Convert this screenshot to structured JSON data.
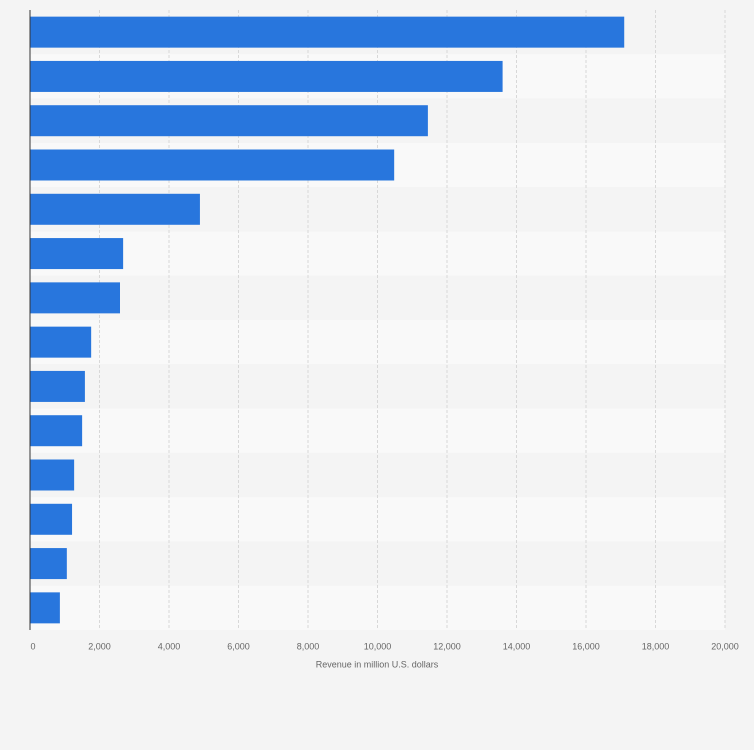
{
  "chart_data": {
    "type": "bar",
    "orientation": "horizontal",
    "x_label": "Revenue in million U.S. dollars",
    "categories": [
      null,
      null,
      null,
      null,
      null,
      null,
      null,
      null,
      null,
      null,
      null,
      null,
      null,
      null
    ],
    "values": [
      17100,
      13600,
      11450,
      10480,
      4890,
      2680,
      2590,
      1760,
      1580,
      1500,
      1270,
      1210,
      1060,
      860
    ],
    "color": "#2876dd",
    "xlim": [
      0,
      20000
    ],
    "xticks": [
      0,
      {
        "value": 2000,
        "label": "2,000"
      },
      {
        "value": 4000,
        "label": "4,000"
      },
      {
        "value": 6000,
        "label": "6,000"
      },
      {
        "value": 8000,
        "label": "8,000"
      },
      {
        "value": 10000,
        "label": "10,000"
      },
      {
        "value": 12000,
        "label": "12,000"
      },
      {
        "value": 14000,
        "label": "14,000"
      },
      {
        "value": 16000,
        "label": "16,000"
      },
      {
        "value": 18000,
        "label": "18,000"
      },
      {
        "value": 20000,
        "label": "20,000"
      }
    ],
    "grid": true
  }
}
